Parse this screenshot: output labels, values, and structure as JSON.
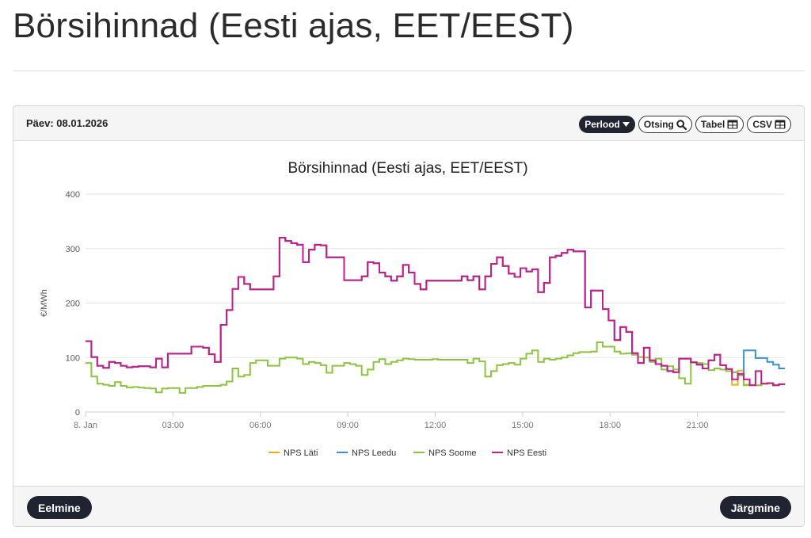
{
  "page": {
    "title": "Börsihinnad (Eesti ajas, EET/EEST)"
  },
  "panel": {
    "day_label": "Päev: 08.01.2026",
    "toolbar": {
      "period_label": "Perlood",
      "search_label": "Otsing",
      "table_label": "Tabel",
      "csv_label": "CSV"
    },
    "footer": {
      "prev_label": "Eelmine",
      "next_label": "Järgmine"
    }
  },
  "icons": [
    "caret-down-icon",
    "search-icon",
    "table-icon",
    "table-icon"
  ],
  "colors": {
    "dark_button": "#1f2430",
    "lati": "#e8b11b",
    "leedu": "#3a8fd0",
    "soome": "#8cc43f",
    "eesti": "#c41c8c"
  },
  "chart_data": {
    "type": "line",
    "step": true,
    "title": "Börsihinnad (Eesti ajas, EET/EEST)",
    "xlabel": "",
    "ylabel": "€/MWh",
    "ylim": [
      0,
      400
    ],
    "yticks": [
      "0",
      "100",
      "200",
      "300",
      "400"
    ],
    "xticks": [
      "8. Jan",
      "03:00",
      "06:00",
      "09:00",
      "12:00",
      "15:00",
      "18:00",
      "21:00"
    ],
    "grid": true,
    "legend_position": "bottom",
    "x_unit": "quarter-hour",
    "legend": [
      "NPS Läti",
      "NPS Leedu",
      "NPS Soome",
      "NPS Eesti"
    ],
    "series": [
      {
        "name": "NPS Läti",
        "color": "#e8b11b",
        "values": [
          130,
          101,
          85,
          81,
          92,
          90,
          85,
          82,
          83,
          84,
          84,
          82,
          98,
          82,
          107,
          107,
          107,
          107,
          120,
          120,
          118,
          106,
          92,
          160,
          187,
          226,
          248,
          235,
          225,
          225,
          225,
          225,
          249,
          320,
          314,
          310,
          307,
          275,
          298,
          307,
          306,
          284,
          284,
          284,
          242,
          242,
          242,
          249,
          275,
          273,
          256,
          249,
          241,
          249,
          270,
          256,
          235,
          225,
          241,
          241,
          241,
          241,
          241,
          241,
          249,
          242,
          249,
          225,
          249,
          272,
          284,
          268,
          254,
          248,
          264,
          258,
          262,
          220,
          237,
          284,
          287,
          292,
          298,
          295,
          295,
          192,
          223,
          223,
          189,
          168,
          132,
          156,
          147,
          108,
          90,
          118,
          95,
          88,
          85,
          75,
          73,
          98,
          98,
          91,
          87,
          80,
          95,
          105,
          86,
          79,
          50,
          76,
          49,
          49,
          49,
          52,
          53,
          49,
          51
        ]
      },
      {
        "name": "NPS Leedu",
        "color": "#3a8fd0",
        "values": [
          130,
          101,
          85,
          81,
          92,
          90,
          85,
          82,
          83,
          84,
          84,
          82,
          98,
          82,
          107,
          107,
          107,
          107,
          120,
          120,
          118,
          106,
          92,
          160,
          187,
          226,
          248,
          235,
          225,
          225,
          225,
          225,
          249,
          320,
          314,
          310,
          307,
          275,
          298,
          307,
          306,
          284,
          284,
          284,
          242,
          242,
          242,
          249,
          275,
          273,
          256,
          249,
          241,
          249,
          270,
          256,
          235,
          225,
          241,
          241,
          241,
          241,
          241,
          241,
          249,
          242,
          249,
          225,
          249,
          272,
          284,
          268,
          254,
          248,
          264,
          258,
          262,
          220,
          237,
          284,
          287,
          292,
          298,
          295,
          295,
          192,
          223,
          223,
          189,
          168,
          132,
          156,
          147,
          108,
          90,
          118,
          95,
          88,
          85,
          75,
          73,
          98,
          98,
          91,
          87,
          80,
          95,
          105,
          86,
          79,
          73,
          67,
          113,
          113,
          99,
          99,
          92,
          87,
          80
        ]
      },
      {
        "name": "NPS Soome",
        "color": "#8cc43f",
        "values": [
          90,
          65,
          52,
          50,
          48,
          55,
          48,
          45,
          46,
          45,
          44,
          43,
          36,
          43,
          44,
          44,
          35,
          44,
          44,
          46,
          48,
          48,
          48,
          50,
          56,
          80,
          65,
          68,
          90,
          95,
          95,
          85,
          85,
          98,
          100,
          100,
          98,
          88,
          92,
          90,
          86,
          72,
          85,
          85,
          90,
          88,
          85,
          68,
          78,
          92,
          97,
          88,
          92,
          95,
          98,
          97,
          96,
          96,
          96,
          97,
          96,
          96,
          96,
          96,
          96,
          90,
          98,
          93,
          65,
          75,
          86,
          88,
          90,
          87,
          98,
          107,
          113,
          92,
          98,
          96,
          98,
          100,
          104,
          108,
          110,
          110,
          111,
          128,
          120,
          120,
          111,
          107,
          108,
          105,
          101,
          100,
          92,
          98,
          78,
          84,
          78,
          62,
          52,
          92,
          90,
          88,
          77,
          80,
          78,
          75,
          73,
          67,
          50,
          50,
          49,
          52,
          53,
          49,
          51
        ]
      },
      {
        "name": "NPS Eesti",
        "color": "#c41c8c",
        "values": [
          130,
          101,
          85,
          81,
          92,
          90,
          85,
          82,
          83,
          84,
          84,
          82,
          98,
          82,
          107,
          107,
          107,
          107,
          120,
          120,
          118,
          106,
          92,
          160,
          187,
          226,
          248,
          235,
          225,
          225,
          225,
          225,
          249,
          320,
          314,
          310,
          307,
          275,
          298,
          307,
          306,
          284,
          284,
          284,
          242,
          242,
          242,
          249,
          275,
          273,
          256,
          249,
          241,
          249,
          270,
          256,
          235,
          225,
          241,
          241,
          241,
          241,
          241,
          241,
          249,
          242,
          249,
          225,
          249,
          272,
          284,
          268,
          254,
          248,
          264,
          258,
          262,
          220,
          237,
          284,
          287,
          292,
          298,
          295,
          295,
          192,
          223,
          223,
          189,
          168,
          132,
          156,
          147,
          108,
          90,
          118,
          95,
          88,
          85,
          75,
          73,
          98,
          98,
          91,
          87,
          80,
          95,
          105,
          86,
          79,
          60,
          70,
          60,
          49,
          75,
          52,
          53,
          49,
          51
        ]
      }
    ]
  }
}
